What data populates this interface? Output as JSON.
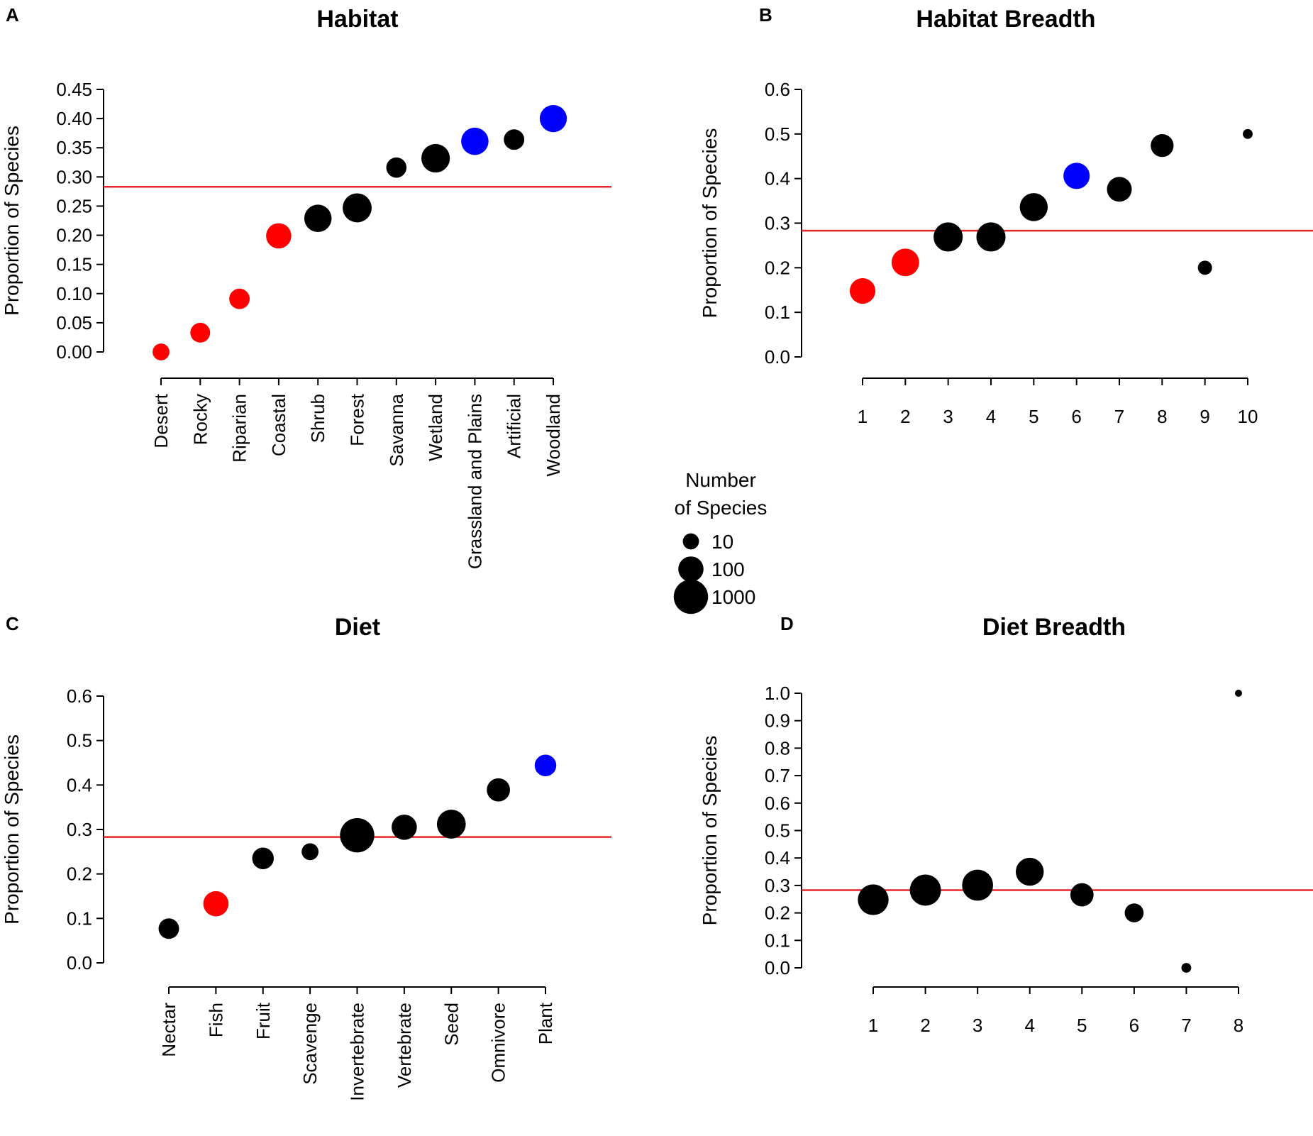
{
  "colors": {
    "significant_low": "#ff0000",
    "significant_high": "#0000ff",
    "neutral": "#000000",
    "reference_line": "#e8262a"
  },
  "legend": {
    "title_line1": "Number",
    "title_line2": "of Species",
    "items": [
      {
        "label": "10",
        "n": 10
      },
      {
        "label": "100",
        "n": 100
      },
      {
        "label": "1000",
        "n": 1000
      }
    ]
  },
  "chart_data": [
    {
      "panel": "A",
      "title": "Habitat",
      "type": "scatter",
      "ylabel": "Proportion of Species",
      "xlabel": "",
      "ylim": [
        0,
        0.45
      ],
      "yticks": [
        "0.00",
        "0.05",
        "0.10",
        "0.15",
        "0.20",
        "0.25",
        "0.30",
        "0.35",
        "0.40",
        "0.45"
      ],
      "reference_line": 0.283,
      "categories": [
        "Desert",
        "Rocky",
        "Riparian",
        "Coastal",
        "Shrub",
        "Forest",
        "Savanna",
        "Wetland",
        "Grassland and Plains",
        "Artificial",
        "Woodland"
      ],
      "points": [
        {
          "x": "Desert",
          "y": 0.0,
          "n": 12,
          "color": "red"
        },
        {
          "x": "Rocky",
          "y": 0.033,
          "n": 25,
          "color": "red"
        },
        {
          "x": "Riparian",
          "y": 0.091,
          "n": 30,
          "color": "red"
        },
        {
          "x": "Coastal",
          "y": 0.199,
          "n": 100,
          "color": "red"
        },
        {
          "x": "Shrub",
          "y": 0.229,
          "n": 170,
          "color": "black"
        },
        {
          "x": "Forest",
          "y": 0.247,
          "n": 260,
          "color": "black"
        },
        {
          "x": "Savanna",
          "y": 0.316,
          "n": 28,
          "color": "black"
        },
        {
          "x": "Wetland",
          "y": 0.332,
          "n": 230,
          "color": "black"
        },
        {
          "x": "Grassland and Plains",
          "y": 0.361,
          "n": 170,
          "color": "blue"
        },
        {
          "x": "Artificial",
          "y": 0.364,
          "n": 30,
          "color": "black"
        },
        {
          "x": "Woodland",
          "y": 0.4,
          "n": 160,
          "color": "blue"
        }
      ]
    },
    {
      "panel": "B",
      "title": "Habitat Breadth",
      "type": "scatter",
      "ylabel": "Proportion of Species",
      "xlabel": "",
      "ylim": [
        0,
        0.6
      ],
      "yticks": [
        "0.0",
        "0.1",
        "0.2",
        "0.3",
        "0.4",
        "0.5",
        "0.6"
      ],
      "reference_line": 0.283,
      "categories": [
        "1",
        "2",
        "3",
        "4",
        "5",
        "6",
        "7",
        "8",
        "9",
        "10"
      ],
      "points": [
        {
          "x": "1",
          "y": 0.148,
          "n": 110,
          "color": "red"
        },
        {
          "x": "2",
          "y": 0.212,
          "n": 180,
          "color": "red"
        },
        {
          "x": "3",
          "y": 0.269,
          "n": 270,
          "color": "black"
        },
        {
          "x": "4",
          "y": 0.269,
          "n": 270,
          "color": "black"
        },
        {
          "x": "5",
          "y": 0.336,
          "n": 200,
          "color": "black"
        },
        {
          "x": "6",
          "y": 0.406,
          "n": 130,
          "color": "blue"
        },
        {
          "x": "7",
          "y": 0.376,
          "n": 90,
          "color": "black"
        },
        {
          "x": "8",
          "y": 0.474,
          "n": 55,
          "color": "black"
        },
        {
          "x": "9",
          "y": 0.2,
          "n": 6,
          "color": "black"
        },
        {
          "x": "10",
          "y": 0.5,
          "n": 2,
          "color": "black"
        }
      ]
    },
    {
      "panel": "C",
      "title": "Diet",
      "type": "scatter",
      "ylabel": "Proportion of Species",
      "xlabel": "",
      "ylim": [
        0,
        0.6
      ],
      "yticks": [
        "0.0",
        "0.1",
        "0.2",
        "0.3",
        "0.4",
        "0.5",
        "0.6"
      ],
      "reference_line": 0.283,
      "categories": [
        "Nectar",
        "Fish",
        "Fruit",
        "Scavenge",
        "Invertebrate",
        "Vertebrate",
        "Seed",
        "Omnivore",
        "Plant"
      ],
      "points": [
        {
          "x": "Nectar",
          "y": 0.077,
          "n": 30,
          "color": "black"
        },
        {
          "x": "Fish",
          "y": 0.133,
          "n": 100,
          "color": "red"
        },
        {
          "x": "Fruit",
          "y": 0.235,
          "n": 40,
          "color": "black"
        },
        {
          "x": "Scavenge",
          "y": 0.25,
          "n": 12,
          "color": "black"
        },
        {
          "x": "Invertebrate",
          "y": 0.287,
          "n": 1000,
          "color": "black"
        },
        {
          "x": "Vertebrate",
          "y": 0.305,
          "n": 100,
          "color": "black"
        },
        {
          "x": "Seed",
          "y": 0.312,
          "n": 250,
          "color": "black"
        },
        {
          "x": "Omnivore",
          "y": 0.389,
          "n": 60,
          "color": "black"
        },
        {
          "x": "Plant",
          "y": 0.444,
          "n": 40,
          "color": "blue"
        }
      ]
    },
    {
      "panel": "D",
      "title": "Diet Breadth",
      "type": "scatter",
      "ylabel": "Proportion of Species",
      "xlabel": "",
      "ylim": [
        0,
        1.0
      ],
      "yticks": [
        "0.0",
        "0.1",
        "0.2",
        "0.3",
        "0.4",
        "0.5",
        "0.6",
        "0.7",
        "0.8",
        "0.9",
        "1.0"
      ],
      "reference_line": 0.283,
      "categories": [
        "1",
        "2",
        "3",
        "4",
        "5",
        "6",
        "7",
        "8"
      ],
      "points": [
        {
          "x": "1",
          "y": 0.248,
          "n": 400,
          "color": "black"
        },
        {
          "x": "2",
          "y": 0.283,
          "n": 450,
          "color": "black"
        },
        {
          "x": "3",
          "y": 0.301,
          "n": 430,
          "color": "black"
        },
        {
          "x": "4",
          "y": 0.35,
          "n": 200,
          "color": "black"
        },
        {
          "x": "5",
          "y": 0.266,
          "n": 60,
          "color": "black"
        },
        {
          "x": "6",
          "y": 0.2,
          "n": 20,
          "color": "black"
        },
        {
          "x": "7",
          "y": 0.0,
          "n": 2,
          "color": "black"
        },
        {
          "x": "8",
          "y": 1.0,
          "n": 1,
          "color": "black"
        }
      ]
    }
  ]
}
